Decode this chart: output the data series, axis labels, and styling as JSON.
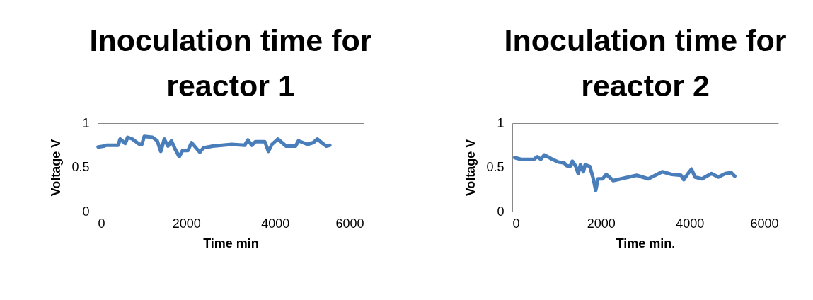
{
  "chart_data": [
    {
      "type": "line",
      "title": "Inoculation time for reactor 1",
      "xlabel": "Time min",
      "ylabel": "Voltage V",
      "xlim": [
        0,
        6000
      ],
      "xticks": [
        0,
        2000,
        4000,
        6000
      ],
      "ylim": [
        0,
        1
      ],
      "yticks": [
        0,
        0.5,
        1
      ],
      "grid": "y",
      "x": [
        11,
        144,
        197,
        464,
        507,
        624,
        677,
        784,
        944,
        997,
        1051,
        1237,
        1344,
        1424,
        1504,
        1584,
        1664,
        1744,
        1840,
        1915,
        2037,
        2117,
        2304,
        2384,
        2597,
        3024,
        3317,
        3387,
        3477,
        3557,
        3771,
        3851,
        3931,
        4064,
        4251,
        4464,
        4528,
        4731,
        4864,
        4955,
        5077,
        5157,
        5237
      ],
      "series": [
        {
          "color": "#4a7ebb",
          "values": [
            0.73,
            0.74,
            0.75,
            0.75,
            0.82,
            0.77,
            0.84,
            0.82,
            0.76,
            0.76,
            0.85,
            0.84,
            0.8,
            0.68,
            0.82,
            0.74,
            0.8,
            0.71,
            0.62,
            0.69,
            0.69,
            0.78,
            0.67,
            0.72,
            0.74,
            0.76,
            0.75,
            0.81,
            0.75,
            0.79,
            0.79,
            0.68,
            0.76,
            0.82,
            0.74,
            0.74,
            0.8,
            0.76,
            0.78,
            0.82,
            0.77,
            0.74,
            0.75
          ]
        }
      ]
    },
    {
      "type": "line",
      "title": "Inoculation time for reactor 2",
      "xlabel": "Time min.",
      "ylabel": "Voltage  V",
      "xlim": [
        0,
        6000
      ],
      "xticks": [
        0,
        2000,
        4000,
        6000
      ],
      "ylim": [
        0,
        1
      ],
      "yticks": [
        0,
        0.5,
        1
      ],
      "grid": "y",
      "x": [
        53,
        195,
        485,
        564,
        643,
        722,
        906,
        1038,
        1170,
        1222,
        1302,
        1354,
        1433,
        1486,
        1538,
        1602,
        1644,
        1749,
        1828,
        1881,
        1934,
        2039,
        2118,
        2277,
        2540,
        2804,
        3067,
        3383,
        3594,
        3805,
        3868,
        3963,
        4042,
        4121,
        4279,
        4490,
        4648,
        4806,
        4938,
        5017
      ],
      "series": [
        {
          "color": "#4a7ebb",
          "values": [
            0.61,
            0.59,
            0.59,
            0.62,
            0.59,
            0.64,
            0.59,
            0.56,
            0.55,
            0.52,
            0.51,
            0.57,
            0.51,
            0.43,
            0.53,
            0.45,
            0.53,
            0.51,
            0.37,
            0.24,
            0.37,
            0.37,
            0.42,
            0.35,
            0.38,
            0.41,
            0.37,
            0.45,
            0.42,
            0.41,
            0.36,
            0.43,
            0.48,
            0.39,
            0.37,
            0.43,
            0.39,
            0.43,
            0.44,
            0.4
          ]
        }
      ]
    }
  ]
}
